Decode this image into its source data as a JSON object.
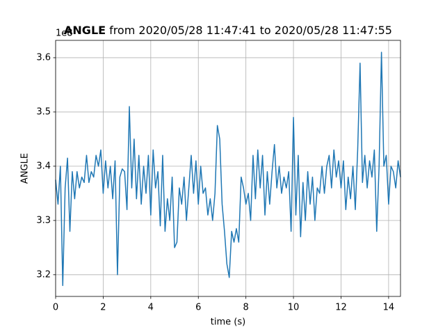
{
  "chart_data": {
    "type": "line",
    "title_bold": "ANGLE",
    "title": "from 2020/05/28 11:47:41 to 2020/05/28 11:47:55",
    "y_offset_label": "1e8",
    "x_label": "time (s)",
    "y_label": "ANGLE",
    "color": "#1f77b4",
    "grid": true,
    "xlim": [
      0,
      14.5
    ],
    "ylim": [
      3.16,
      3.632
    ],
    "xticks": [
      0,
      2,
      4,
      6,
      8,
      10,
      12,
      14
    ],
    "yticks": [
      3.2,
      3.3,
      3.4,
      3.5,
      3.6
    ],
    "x": [
      0,
      0.1,
      0.2,
      0.3,
      0.4,
      0.5,
      0.6,
      0.7,
      0.8,
      0.9,
      1,
      1.1,
      1.2,
      1.3,
      1.4,
      1.5,
      1.6,
      1.7,
      1.8,
      1.9,
      2,
      2.1,
      2.2,
      2.3,
      2.4,
      2.5,
      2.6,
      2.7,
      2.8,
      2.9,
      3,
      3.1,
      3.2,
      3.3,
      3.4,
      3.5,
      3.6,
      3.7,
      3.8,
      3.9,
      4,
      4.1,
      4.2,
      4.3,
      4.4,
      4.5,
      4.6,
      4.7,
      4.8,
      4.9,
      5,
      5.1,
      5.2,
      5.3,
      5.4,
      5.5,
      5.6,
      5.7,
      5.8,
      5.9,
      6,
      6.1,
      6.2,
      6.3,
      6.4,
      6.5,
      6.6,
      6.7,
      6.8,
      6.9,
      7,
      7.1,
      7.2,
      7.3,
      7.4,
      7.5,
      7.6,
      7.7,
      7.8,
      7.9,
      8,
      8.1,
      8.2,
      8.3,
      8.4,
      8.5,
      8.6,
      8.7,
      8.8,
      8.9,
      9,
      9.1,
      9.2,
      9.3,
      9.4,
      9.5,
      9.6,
      9.7,
      9.8,
      9.9,
      10,
      10.1,
      10.2,
      10.3,
      10.4,
      10.5,
      10.6,
      10.7,
      10.8,
      10.9,
      11,
      11.1,
      11.2,
      11.3,
      11.4,
      11.5,
      11.6,
      11.7,
      11.8,
      11.9,
      12,
      12.1,
      12.2,
      12.3,
      12.4,
      12.5,
      12.6,
      12.7,
      12.8,
      12.9,
      13,
      13.1,
      13.2,
      13.3,
      13.4,
      13.5,
      13.6,
      13.7,
      13.8,
      13.9,
      14,
      14.1,
      14.2,
      14.3,
      14.4,
      14.5
    ],
    "values": [
      3.375,
      3.33,
      3.4,
      3.18,
      3.36,
      3.415,
      3.28,
      3.39,
      3.34,
      3.39,
      3.36,
      3.38,
      3.37,
      3.42,
      3.37,
      3.39,
      3.38,
      3.42,
      3.4,
      3.43,
      3.35,
      3.41,
      3.36,
      3.4,
      3.34,
      3.41,
      3.2,
      3.38,
      3.395,
      3.39,
      3.32,
      3.51,
      3.36,
      3.45,
      3.34,
      3.42,
      3.33,
      3.4,
      3.35,
      3.42,
      3.31,
      3.43,
      3.36,
      3.39,
      3.29,
      3.42,
      3.28,
      3.34,
      3.3,
      3.38,
      3.25,
      3.26,
      3.36,
      3.33,
      3.38,
      3.3,
      3.36,
      3.42,
      3.35,
      3.41,
      3.33,
      3.4,
      3.35,
      3.36,
      3.31,
      3.34,
      3.3,
      3.35,
      3.475,
      3.45,
      3.33,
      3.28,
      3.22,
      3.195,
      3.28,
      3.26,
      3.285,
      3.26,
      3.38,
      3.36,
      3.33,
      3.35,
      3.3,
      3.42,
      3.34,
      3.43,
      3.36,
      3.42,
      3.31,
      3.39,
      3.33,
      3.39,
      3.44,
      3.36,
      3.4,
      3.35,
      3.38,
      3.36,
      3.39,
      3.28,
      3.49,
      3.31,
      3.42,
      3.27,
      3.37,
      3.3,
      3.39,
      3.33,
      3.38,
      3.3,
      3.36,
      3.35,
      3.4,
      3.35,
      3.4,
      3.42,
      3.36,
      3.43,
      3.38,
      3.41,
      3.36,
      3.41,
      3.32,
      3.38,
      3.34,
      3.4,
      3.32,
      3.43,
      3.59,
      3.37,
      3.42,
      3.36,
      3.41,
      3.38,
      3.43,
      3.28,
      3.4,
      3.61,
      3.4,
      3.42,
      3.33,
      3.4,
      3.39,
      3.36,
      3.41,
      3.38
    ]
  }
}
